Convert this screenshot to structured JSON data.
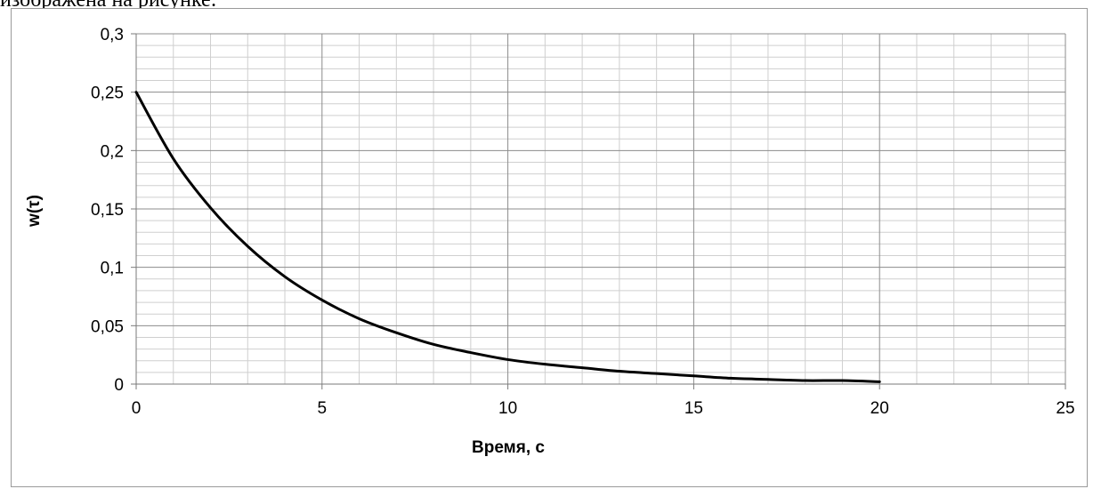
{
  "header_text": "изображена на рисунке:",
  "chart_data": {
    "type": "line",
    "title": "",
    "xlabel": "Время, с",
    "ylabel": "w(τ)",
    "xlim": [
      0,
      25
    ],
    "ylim": [
      0,
      0.3
    ],
    "x_ticks": [
      0,
      5,
      10,
      15,
      20,
      25
    ],
    "x_tick_labels": [
      "0",
      "5",
      "10",
      "15",
      "20",
      "25"
    ],
    "y_ticks": [
      0,
      0.05,
      0.1,
      0.15,
      0.2,
      0.25,
      0.3
    ],
    "y_tick_labels": [
      "0",
      "0,05",
      "0,1",
      "0,15",
      "0,2",
      "0,25",
      "0,3"
    ],
    "grid": true,
    "legend": "none",
    "series": [
      {
        "color": "#000000",
        "x": [
          0,
          1,
          2,
          3,
          4,
          5,
          6,
          7,
          8,
          9,
          10,
          11,
          12,
          13,
          14,
          15,
          16,
          17,
          18,
          19,
          20
        ],
        "y": [
          0.25,
          0.193,
          0.151,
          0.118,
          0.092,
          0.072,
          0.056,
          0.044,
          0.034,
          0.027,
          0.021,
          0.017,
          0.014,
          0.011,
          0.009,
          0.007,
          0.005,
          0.004,
          0.003,
          0.003,
          0.002
        ]
      }
    ]
  }
}
